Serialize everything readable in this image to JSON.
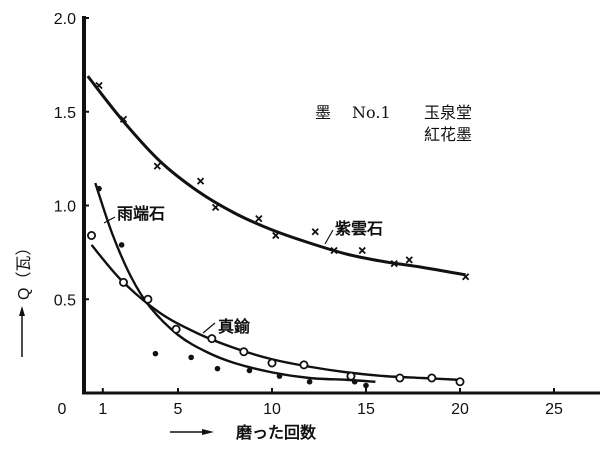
{
  "chart_data": {
    "type": "scatter",
    "title": "",
    "annotation": {
      "line1_a": "墨",
      "line1_b": "No.1",
      "line1_c": "玉泉堂",
      "line2": "紅花墨"
    },
    "xlabel": "磨った回数",
    "ylabel": "Q（瓦）",
    "xlim": [
      0,
      26
    ],
    "ylim": [
      0,
      2.0
    ],
    "xticks": [
      "0",
      "1",
      "5",
      "10",
      "15",
      "20",
      "25"
    ],
    "yticks": [
      "0.5",
      "1.0",
      "1.5",
      "2.0"
    ],
    "grid": false,
    "legend": "inline labels on curves",
    "series": [
      {
        "name": "紫雲石",
        "marker": "x",
        "points": [
          [
            0.8,
            1.64
          ],
          [
            2.1,
            1.46
          ],
          [
            3.9,
            1.21
          ],
          [
            6.2,
            1.13
          ],
          [
            7.0,
            0.99
          ],
          [
            9.3,
            0.93
          ],
          [
            10.2,
            0.84
          ],
          [
            12.3,
            0.86
          ],
          [
            13.3,
            0.76
          ],
          [
            14.8,
            0.76
          ],
          [
            16.5,
            0.69
          ],
          [
            17.3,
            0.71
          ],
          [
            20.3,
            0.62
          ]
        ],
        "fit_curve": [
          [
            0.2,
            1.69
          ],
          [
            2,
            1.46
          ],
          [
            4,
            1.24
          ],
          [
            6,
            1.08
          ],
          [
            8,
            0.96
          ],
          [
            10,
            0.87
          ],
          [
            12,
            0.8
          ],
          [
            14,
            0.74
          ],
          [
            16,
            0.7
          ],
          [
            18,
            0.67
          ],
          [
            20.3,
            0.63
          ]
        ]
      },
      {
        "name": "真鍮",
        "marker": "o",
        "points": [
          [
            0.4,
            0.84
          ],
          [
            2.1,
            0.59
          ],
          [
            3.4,
            0.5
          ],
          [
            4.9,
            0.34
          ],
          [
            6.8,
            0.29
          ],
          [
            8.5,
            0.22
          ],
          [
            10.0,
            0.16
          ],
          [
            11.7,
            0.15
          ],
          [
            14.2,
            0.09
          ],
          [
            16.8,
            0.08
          ],
          [
            18.5,
            0.08
          ],
          [
            20.0,
            0.06
          ]
        ],
        "fit_curve": [
          [
            0.4,
            0.79
          ],
          [
            2,
            0.6
          ],
          [
            4,
            0.43
          ],
          [
            6,
            0.32
          ],
          [
            8,
            0.24
          ],
          [
            10,
            0.18
          ],
          [
            12,
            0.14
          ],
          [
            14,
            0.11
          ],
          [
            16,
            0.09
          ],
          [
            18,
            0.08
          ],
          [
            20,
            0.07
          ]
        ]
      },
      {
        "name": "雨端石",
        "marker": "dot",
        "points": [
          [
            0.8,
            1.09
          ],
          [
            2.0,
            0.79
          ],
          [
            3.8,
            0.21
          ],
          [
            5.7,
            0.19
          ],
          [
            7.1,
            0.13
          ],
          [
            8.8,
            0.12
          ],
          [
            10.4,
            0.09
          ],
          [
            12.0,
            0.06
          ],
          [
            14.4,
            0.06
          ],
          [
            15.0,
            0.04
          ]
        ],
        "fit_curve": [
          [
            0.6,
            1.12
          ],
          [
            1.5,
            0.85
          ],
          [
            2.5,
            0.62
          ],
          [
            3.5,
            0.46
          ],
          [
            5,
            0.31
          ],
          [
            6.5,
            0.22
          ],
          [
            8,
            0.16
          ],
          [
            10,
            0.11
          ],
          [
            12,
            0.08
          ],
          [
            14,
            0.07
          ],
          [
            15.5,
            0.06
          ]
        ]
      }
    ]
  }
}
